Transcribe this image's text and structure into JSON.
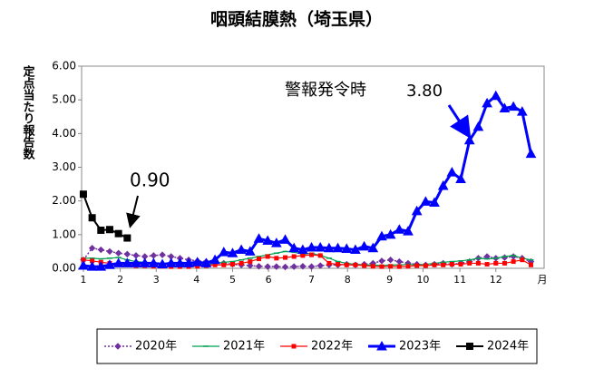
{
  "chart_data": {
    "type": "line",
    "title": "咽頭結膜熱（埼玉県）",
    "y_label": "定点当たり報告数",
    "x_unit_label": "月",
    "annotations": [
      {
        "text": "警報発令時"
      },
      {
        "text": "3.80"
      },
      {
        "text": "0.90"
      }
    ],
    "x": [
      1,
      2,
      3,
      4,
      5,
      6,
      7,
      8,
      9,
      10,
      11,
      12,
      13,
      14,
      15,
      16,
      17,
      18,
      19,
      20,
      21,
      22,
      23,
      24,
      25,
      26,
      27,
      28,
      29,
      30,
      31,
      32,
      33,
      34,
      35,
      36,
      37,
      38,
      39,
      40,
      41,
      42,
      43,
      44,
      45,
      46,
      47,
      48,
      49,
      50,
      51,
      52
    ],
    "xlim": [
      0.8,
      53.5
    ],
    "xticks": [
      {
        "value": 1,
        "label": "1"
      },
      {
        "value": 5.2,
        "label": "2"
      },
      {
        "value": 9.3,
        "label": "3"
      },
      {
        "value": 13.9,
        "label": "4"
      },
      {
        "value": 18,
        "label": "5"
      },
      {
        "value": 22.1,
        "label": "6"
      },
      {
        "value": 27,
        "label": "7"
      },
      {
        "value": 31.1,
        "label": "8"
      },
      {
        "value": 35.9,
        "label": "9"
      },
      {
        "value": 39.7,
        "label": "10"
      },
      {
        "value": 43.9,
        "label": "11"
      },
      {
        "value": 48,
        "label": "12"
      }
    ],
    "ylim": [
      0,
      6
    ],
    "yticks": [
      {
        "value": 0,
        "label": "0.00"
      },
      {
        "value": 1,
        "label": "1.00"
      },
      {
        "value": 2,
        "label": "2.00"
      },
      {
        "value": 3,
        "label": "3.00"
      },
      {
        "value": 4,
        "label": "4.00"
      },
      {
        "value": 5,
        "label": "5.00"
      },
      {
        "value": 6,
        "label": "6.00"
      }
    ],
    "series": [
      {
        "name": "2020年",
        "color": "#7030a0",
        "marker": "diamond",
        "dash": "2,2",
        "width": 1.5,
        "values": [
          0.25,
          0.6,
          0.55,
          0.5,
          0.45,
          0.42,
          0.38,
          0.35,
          0.38,
          0.4,
          0.35,
          0.3,
          0.25,
          0.22,
          0.2,
          0.18,
          0.15,
          0.12,
          0.1,
          0.08,
          0.06,
          0.05,
          0.05,
          0.04,
          0.05,
          0.06,
          0.05,
          0.08,
          0.1,
          0.1,
          0.12,
          0.1,
          0.12,
          0.15,
          0.22,
          0.25,
          0.2,
          0.15,
          0.12,
          0.1,
          0.12,
          0.15,
          0.12,
          0.15,
          0.2,
          0.3,
          0.35,
          0.3,
          0.32,
          0.35,
          0.3,
          0.2
        ]
      },
      {
        "name": "2021年",
        "color": "#00a050",
        "marker": "dash",
        "dash": "",
        "width": 1.2,
        "values": [
          0.3,
          0.3,
          0.28,
          0.3,
          0.32,
          0.25,
          0.2,
          0.18,
          0.15,
          0.12,
          0.12,
          0.1,
          0.1,
          0.12,
          0.1,
          0.15,
          0.18,
          0.2,
          0.25,
          0.3,
          0.35,
          0.4,
          0.45,
          0.5,
          0.48,
          0.42,
          0.45,
          0.38,
          0.3,
          0.2,
          0.15,
          0.12,
          0.1,
          0.1,
          0.08,
          0.1,
          0.1,
          0.12,
          0.1,
          0.12,
          0.15,
          0.18,
          0.2,
          0.22,
          0.25,
          0.3,
          0.28,
          0.3,
          0.35,
          0.38,
          0.3,
          0.25
        ]
      },
      {
        "name": "2022年",
        "color": "#ff0000",
        "marker": "square-small",
        "dash": "",
        "width": 1.2,
        "values": [
          0.25,
          0.22,
          0.18,
          0.15,
          0.12,
          0.1,
          0.08,
          0.08,
          0.06,
          0.06,
          0.05,
          0.05,
          0.05,
          0.06,
          0.08,
          0.1,
          0.1,
          0.12,
          0.15,
          0.2,
          0.28,
          0.35,
          0.3,
          0.32,
          0.35,
          0.38,
          0.4,
          0.38,
          0.15,
          0.12,
          0.1,
          0.1,
          0.08,
          0.06,
          0.05,
          0.06,
          0.05,
          0.06,
          0.08,
          0.08,
          0.1,
          0.1,
          0.12,
          0.12,
          0.15,
          0.15,
          0.12,
          0.15,
          0.15,
          0.2,
          0.25,
          0.1
        ]
      },
      {
        "name": "2023年",
        "color": "#0000ff",
        "marker": "triangle",
        "dash": "",
        "width": 3,
        "values": [
          0.08,
          0.05,
          0.05,
          0.1,
          0.15,
          0.15,
          0.15,
          0.15,
          0.15,
          0.12,
          0.15,
          0.15,
          0.15,
          0.18,
          0.15,
          0.25,
          0.48,
          0.45,
          0.55,
          0.5,
          0.88,
          0.82,
          0.75,
          0.85,
          0.6,
          0.55,
          0.62,
          0.62,
          0.6,
          0.6,
          0.58,
          0.55,
          0.65,
          0.6,
          0.95,
          1.0,
          1.15,
          1.1,
          1.7,
          1.98,
          1.95,
          2.45,
          2.85,
          2.65,
          3.8,
          4.2,
          4.9,
          5.12,
          4.75,
          4.8,
          4.65,
          3.4
        ]
      },
      {
        "name": "2024年",
        "color": "#000000",
        "marker": "square",
        "dash": "",
        "width": 2,
        "values": [
          2.2,
          1.5,
          1.13,
          1.15,
          1.03,
          0.9,
          null,
          null,
          null,
          null,
          null,
          null,
          null,
          null,
          null,
          null,
          null,
          null,
          null,
          null,
          null,
          null,
          null,
          null,
          null,
          null,
          null,
          null,
          null,
          null,
          null,
          null,
          null,
          null,
          null,
          null,
          null,
          null,
          null,
          null,
          null,
          null,
          null,
          null,
          null,
          null,
          null,
          null,
          null,
          null,
          null,
          null
        ]
      }
    ]
  }
}
